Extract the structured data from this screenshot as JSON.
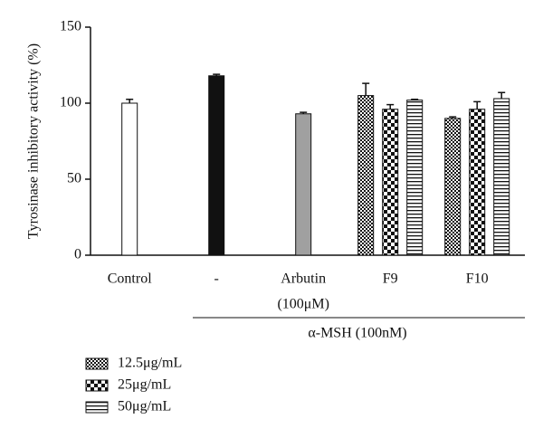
{
  "chart_data": {
    "type": "bar",
    "ylabel": "Tyrosinase inhibitory activity (%)",
    "categories": [
      "Control",
      "-",
      "Arbutin",
      "F9",
      "F10"
    ],
    "category_sublabels": [
      null,
      null,
      "(100μM)",
      null,
      null
    ],
    "group_label": "α-MSH (100nM)",
    "single_values": [
      100,
      118,
      93,
      null,
      null
    ],
    "single_errors": [
      2.5,
      1,
      1,
      null,
      null
    ],
    "single_colors": [
      "#ffffff",
      "#111111",
      "#a0a0a0",
      null,
      null
    ],
    "series": [
      {
        "name": "12.5μg/mL",
        "pattern": "fine-checker",
        "color": "#111111",
        "values": [
          null,
          null,
          null,
          105,
          90
        ],
        "errors": [
          null,
          null,
          null,
          8,
          1
        ]
      },
      {
        "name": "25μg/mL",
        "pattern": "coarse-checker",
        "color": "#111111",
        "values": [
          null,
          null,
          null,
          96,
          96
        ],
        "errors": [
          null,
          null,
          null,
          3,
          5
        ]
      },
      {
        "name": "50μg/mL",
        "pattern": "horizontal-lines",
        "color": "#111111",
        "values": [
          null,
          null,
          null,
          102,
          103
        ],
        "errors": [
          null,
          null,
          null,
          0.5,
          4
        ]
      }
    ],
    "ylim": [
      0,
      150
    ],
    "yticks": [
      0,
      50,
      100,
      150
    ]
  }
}
